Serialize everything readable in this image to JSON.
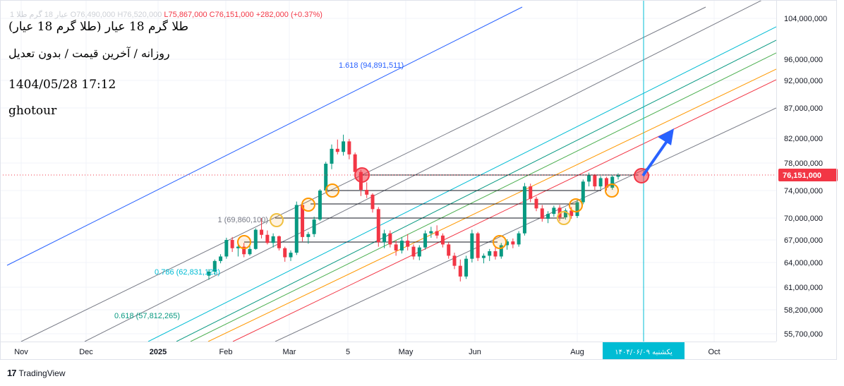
{
  "header": {
    "title": "(طلا گرم 18 عیار (طلا گرم 18 عیار",
    "subtitle": "روزانه / آخرین قیمت / بدون تعدیل",
    "datetime": "1404/05/28 17:12",
    "author": "ghotour",
    "ohlc_prefix": "1 عیار 18 گرم طلا O76,490,000 H76,520,000",
    "ohlc_low": "L75,867,000",
    "ohlc_close": "C76,151,000",
    "ohlc_change": "+282,000 (+0.37%)"
  },
  "footer": {
    "brand": "TradingView",
    "logo": "tradingview-logo-icon"
  },
  "colors": {
    "up": "#089981",
    "down": "#f23645",
    "last": "#f23645",
    "crosshair": "#00bcd4"
  },
  "chart_data": {
    "type": "candlestick",
    "price_scale": [
      "104,000,000",
      "96,000,000",
      "92,000,000",
      "87,000,000",
      "82,000,000",
      "78,000,000",
      "74,000,000",
      "70,000,000",
      "67,000,000",
      "64,000,000",
      "61,000,000",
      "58,200,000",
      "55,700,000"
    ],
    "last_price_label": "76,151,000",
    "time_labels": [
      "Nov",
      "Dec",
      "2025",
      "Feb",
      "Mar",
      "5",
      "May",
      "Jun",
      "Aug",
      "Oct"
    ],
    "crosshair_date_label": "یکشنبه ۱۴۰۴/۰۶/۰۹",
    "fib_labels": [
      "1.618 (94,891,511)",
      "1 (69,860,100)",
      "0.786 (62,831,123)",
      "0.618 (57,812,265)"
    ],
    "candles": [
      [
        62.4,
        63.2,
        61.9,
        62.9
      ],
      [
        62.9,
        64.4,
        62.5,
        64.2
      ],
      [
        64.2,
        65.1,
        63.9,
        64.8
      ],
      [
        64.8,
        67.3,
        64.5,
        67.0
      ],
      [
        67.0,
        67.4,
        65.4,
        65.9
      ],
      [
        65.9,
        66.8,
        64.8,
        66.1
      ],
      [
        66.1,
        66.6,
        64.7,
        65.1
      ],
      [
        65.1,
        66.4,
        64.9,
        65.8
      ],
      [
        65.8,
        68.6,
        65.7,
        68.4
      ],
      [
        68.4,
        70.0,
        67.2,
        67.7
      ],
      [
        67.7,
        68.3,
        66.4,
        66.6
      ],
      [
        66.6,
        67.9,
        66.0,
        67.5
      ],
      [
        67.5,
        67.6,
        65.6,
        65.9
      ],
      [
        65.9,
        66.1,
        64.1,
        64.7
      ],
      [
        64.7,
        65.6,
        64.2,
        65.3
      ],
      [
        65.3,
        72.4,
        65.0,
        71.9
      ],
      [
        71.9,
        72.3,
        66.8,
        67.4
      ],
      [
        67.4,
        68.1,
        66.5,
        67.8
      ],
      [
        67.8,
        70.2,
        67.4,
        69.8
      ],
      [
        69.8,
        74.2,
        69.6,
        74.0
      ],
      [
        74.0,
        78.2,
        73.8,
        77.9
      ],
      [
        77.9,
        81.0,
        77.1,
        80.3
      ],
      [
        80.3,
        81.8,
        79.4,
        79.8
      ],
      [
        79.8,
        82.6,
        79.2,
        81.5
      ],
      [
        81.5,
        81.9,
        78.6,
        79.4
      ],
      [
        79.4,
        79.7,
        76.2,
        76.7
      ],
      [
        76.7,
        77.0,
        73.2,
        74.1
      ],
      [
        74.1,
        75.2,
        72.9,
        73.4
      ],
      [
        73.4,
        73.6,
        70.8,
        71.3
      ],
      [
        71.3,
        71.6,
        66.1,
        66.7
      ],
      [
        66.7,
        68.4,
        65.9,
        67.9
      ],
      [
        67.9,
        68.3,
        66.0,
        66.4
      ],
      [
        66.4,
        66.9,
        64.9,
        65.6
      ],
      [
        65.6,
        67.4,
        65.2,
        66.9
      ],
      [
        66.9,
        67.8,
        65.6,
        66.1
      ],
      [
        66.1,
        66.4,
        64.4,
        64.8
      ],
      [
        64.8,
        66.3,
        64.3,
        66.0
      ],
      [
        66.0,
        68.3,
        65.7,
        67.9
      ],
      [
        67.9,
        68.8,
        67.3,
        68.2
      ],
      [
        68.2,
        69.0,
        67.2,
        67.6
      ],
      [
        67.6,
        67.9,
        66.0,
        66.4
      ],
      [
        66.4,
        66.7,
        64.5,
        64.9
      ],
      [
        64.9,
        65.3,
        63.2,
        63.6
      ],
      [
        63.6,
        64.4,
        61.7,
        62.3
      ],
      [
        62.3,
        64.9,
        62.0,
        64.5
      ],
      [
        64.5,
        68.4,
        64.0,
        67.9
      ],
      [
        67.9,
        68.1,
        64.2,
        64.6
      ],
      [
        64.6,
        65.2,
        63.9,
        64.9
      ],
      [
        64.9,
        65.8,
        64.2,
        65.5
      ],
      [
        65.5,
        66.1,
        64.4,
        64.8
      ],
      [
        64.8,
        66.6,
        64.5,
        66.3
      ],
      [
        66.3,
        67.1,
        65.7,
        66.8
      ],
      [
        66.8,
        67.2,
        65.9,
        66.4
      ],
      [
        66.4,
        68.2,
        66.1,
        67.9
      ],
      [
        67.9,
        75.1,
        67.6,
        74.6
      ],
      [
        74.6,
        75.0,
        72.3,
        72.8
      ],
      [
        72.8,
        73.1,
        71.0,
        71.4
      ],
      [
        71.4,
        71.9,
        69.5,
        69.9
      ],
      [
        69.9,
        71.0,
        69.3,
        70.6
      ],
      [
        70.6,
        71.8,
        70.2,
        71.5
      ],
      [
        71.5,
        71.9,
        69.6,
        70.1
      ],
      [
        70.1,
        71.4,
        69.8,
        71.1
      ],
      [
        71.1,
        71.6,
        69.9,
        70.3
      ],
      [
        70.3,
        72.6,
        70.0,
        72.3
      ],
      [
        72.3,
        75.6,
        72.0,
        75.3
      ],
      [
        75.3,
        76.6,
        74.6,
        76.2
      ],
      [
        76.2,
        76.4,
        74.1,
        74.6
      ],
      [
        74.6,
        76.1,
        74.2,
        75.8
      ],
      [
        75.8,
        76.0,
        74.0,
        74.4
      ],
      [
        74.4,
        76.3,
        74.1,
        76.0
      ],
      [
        76.0,
        76.5,
        75.6,
        76.2
      ]
    ]
  }
}
